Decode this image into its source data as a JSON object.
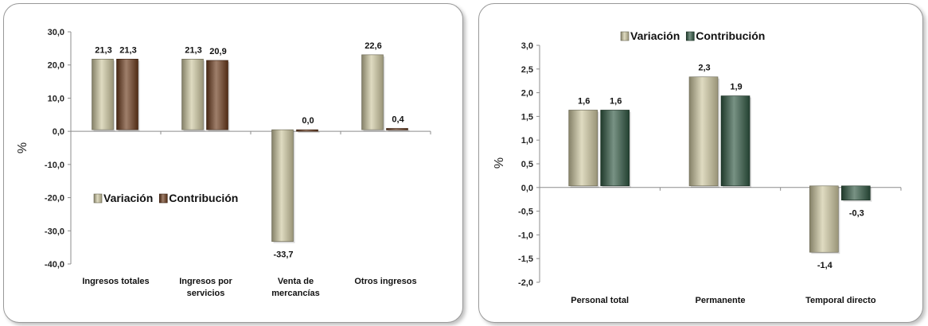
{
  "chart_data": [
    {
      "type": "bar",
      "categories": [
        "Ingresos totales",
        "Ingresos por servicios",
        "Venta de mercancías",
        "Otros ingresos"
      ],
      "category_lines": [
        [
          "Ingresos totales"
        ],
        [
          "Ingresos por",
          "servicios"
        ],
        [
          "Venta de",
          "mercancías"
        ],
        [
          "Otros ingresos"
        ]
      ],
      "series": [
        {
          "name": "Variación",
          "values": [
            21.3,
            21.3,
            -33.7,
            22.6
          ],
          "labels": [
            "21,3",
            "21,3",
            "-33,7",
            "22,6"
          ],
          "color": "#cdc7a0"
        },
        {
          "name": "Contribución",
          "values": [
            21.3,
            20.9,
            0.0,
            0.4
          ],
          "labels": [
            "21,3",
            "20,9",
            "0,0",
            "0,4"
          ],
          "color": "#6b3a1c"
        }
      ],
      "ylabel": "%",
      "ylim": [
        -40,
        30
      ],
      "yticks": [
        "30,0",
        "20,0",
        "10,0",
        "0,0",
        "-10,0",
        "-20,0",
        "-30,0",
        "-40,0"
      ],
      "legend_position": "left-middle",
      "grid": false
    },
    {
      "type": "bar",
      "categories": [
        "Personal total",
        "Permanente",
        "Temporal directo"
      ],
      "category_lines": [
        [
          "Personal total"
        ],
        [
          "Permanente"
        ],
        [
          "Temporal directo"
        ]
      ],
      "series": [
        {
          "name": "Variación",
          "values": [
            1.6,
            2.3,
            -1.4
          ],
          "labels": [
            "1,6",
            "2,3",
            "-1,4"
          ],
          "color": "#cdc7a0"
        },
        {
          "name": "Contribución",
          "values": [
            1.6,
            1.9,
            -0.3
          ],
          "labels": [
            "1,6",
            "1,9",
            "-0,3"
          ],
          "color": "#2f5741"
        }
      ],
      "ylabel": "%",
      "ylim": [
        -2.0,
        3.0
      ],
      "yticks": [
        "3,0",
        "2,5",
        "2,0",
        "1,5",
        "1,0",
        "0,5",
        "0,0",
        "-0,5",
        "-1,0",
        "-1,5",
        "-2,0"
      ],
      "legend_position": "top",
      "grid": false
    }
  ]
}
